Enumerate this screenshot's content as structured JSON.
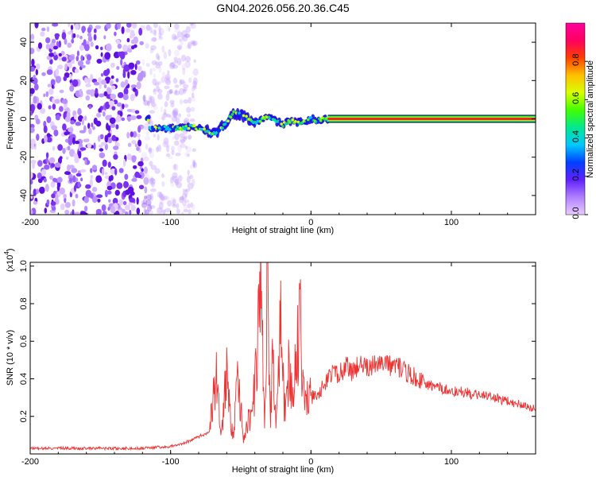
{
  "figure": {
    "title": "GN04.2026.056.20.36.C45"
  },
  "chart_data": [
    {
      "type": "heatmap",
      "xlabel": "Height of straight line (km)",
      "ylabel": "Frequency (Hz)",
      "xlim": [
        -200,
        160
      ],
      "ylim": [
        -50,
        50
      ],
      "xticks": [
        -200,
        -100,
        0,
        100
      ],
      "xtick_labels": [
        "-200",
        "-100",
        "0",
        "100"
      ],
      "yticks": [
        -40,
        -20,
        0,
        20,
        40
      ],
      "ytick_labels": [
        "-40",
        "-20",
        "0",
        "20",
        "40"
      ],
      "colorbar": {
        "label": "Normalized spectral amplitude",
        "range": [
          0,
          1
        ],
        "ticks": [
          0.0,
          0.2,
          0.4,
          0.6,
          0.8
        ],
        "tick_labels": [
          "0.0",
          "0.2",
          "0.4",
          "0.6",
          "0.8"
        ],
        "colors": [
          "#e8ccff",
          "#b080ff",
          "#6020ff",
          "#0040ff",
          "#00c8ff",
          "#00e890",
          "#40ff00",
          "#d8ff00",
          "#ffc000",
          "#ff4000",
          "#ff0060",
          "#ff00a0"
        ]
      },
      "noise_region_x": [
        -200,
        -90
      ],
      "signal_track": [
        {
          "x": -115,
          "y": -5
        },
        {
          "x": -105,
          "y": -5
        },
        {
          "x": -95,
          "y": -5
        },
        {
          "x": -85,
          "y": -4
        },
        {
          "x": -75,
          "y": -6
        },
        {
          "x": -68,
          "y": -8
        },
        {
          "x": -62,
          "y": -3
        },
        {
          "x": -55,
          "y": 3
        },
        {
          "x": -50,
          "y": 2
        },
        {
          "x": -45,
          "y": 0
        },
        {
          "x": -40,
          "y": -2
        },
        {
          "x": -35,
          "y": 0
        },
        {
          "x": -30,
          "y": 1
        },
        {
          "x": -25,
          "y": -1
        },
        {
          "x": -20,
          "y": -3
        },
        {
          "x": -15,
          "y": -1
        },
        {
          "x": -10,
          "y": -2
        },
        {
          "x": -5,
          "y": -1
        },
        {
          "x": 0,
          "y": 0
        },
        {
          "x": 5,
          "y": -1
        },
        {
          "x": 10,
          "y": 0
        },
        {
          "x": 15,
          "y": 0
        },
        {
          "x": 160,
          "y": 0
        }
      ],
      "steady_tone": {
        "x_start": 12,
        "x_end": 160,
        "y": 0
      }
    },
    {
      "type": "line",
      "xlabel": "Height of straight line (km)",
      "ylabel": "SNR (10 * v/v)",
      "y_multiplier": "(x10",
      "y_multiplier_exp": "4",
      "y_multiplier_close": ")",
      "xlim": [
        -200,
        160
      ],
      "ylim": [
        0,
        1.02
      ],
      "xticks": [
        -200,
        -100,
        0,
        100
      ],
      "xtick_labels": [
        "-200",
        "-100",
        "0",
        "100"
      ],
      "yticks": [
        0.2,
        0.4,
        0.6,
        0.8,
        1.0
      ],
      "ytick_labels": [
        "0.2",
        "0.4",
        "0.6",
        "0.8",
        "1.0"
      ],
      "color": "#ee3333",
      "series": [
        {
          "x": [
            -200,
            -180,
            -160,
            -140,
            -120,
            -100,
            -90,
            -80,
            -72,
            -68,
            -64,
            -60,
            -56,
            -52,
            -48,
            -44,
            -40,
            -36,
            -33,
            -31,
            -29,
            -27,
            -25,
            -22,
            -19,
            -16,
            -13,
            -10,
            -8,
            -6,
            -4,
            -2,
            0,
            5,
            10,
            15,
            20,
            25,
            30,
            35,
            40,
            45,
            50,
            55,
            60,
            65,
            70,
            80,
            90,
            100,
            110,
            120,
            130,
            140,
            150,
            160
          ],
          "y": [
            0.03,
            0.03,
            0.03,
            0.03,
            0.03,
            0.04,
            0.06,
            0.09,
            0.12,
            0.45,
            0.14,
            0.4,
            0.1,
            0.38,
            0.09,
            0.2,
            0.35,
            0.9,
            0.12,
            1.0,
            0.2,
            0.6,
            0.15,
            0.74,
            0.2,
            0.45,
            0.25,
            0.55,
            0.78,
            0.33,
            0.28,
            0.35,
            0.3,
            0.32,
            0.38,
            0.44,
            0.42,
            0.47,
            0.44,
            0.49,
            0.46,
            0.48,
            0.5,
            0.47,
            0.48,
            0.45,
            0.43,
            0.38,
            0.36,
            0.33,
            0.33,
            0.31,
            0.3,
            0.28,
            0.26,
            0.24
          ]
        }
      ]
    }
  ]
}
